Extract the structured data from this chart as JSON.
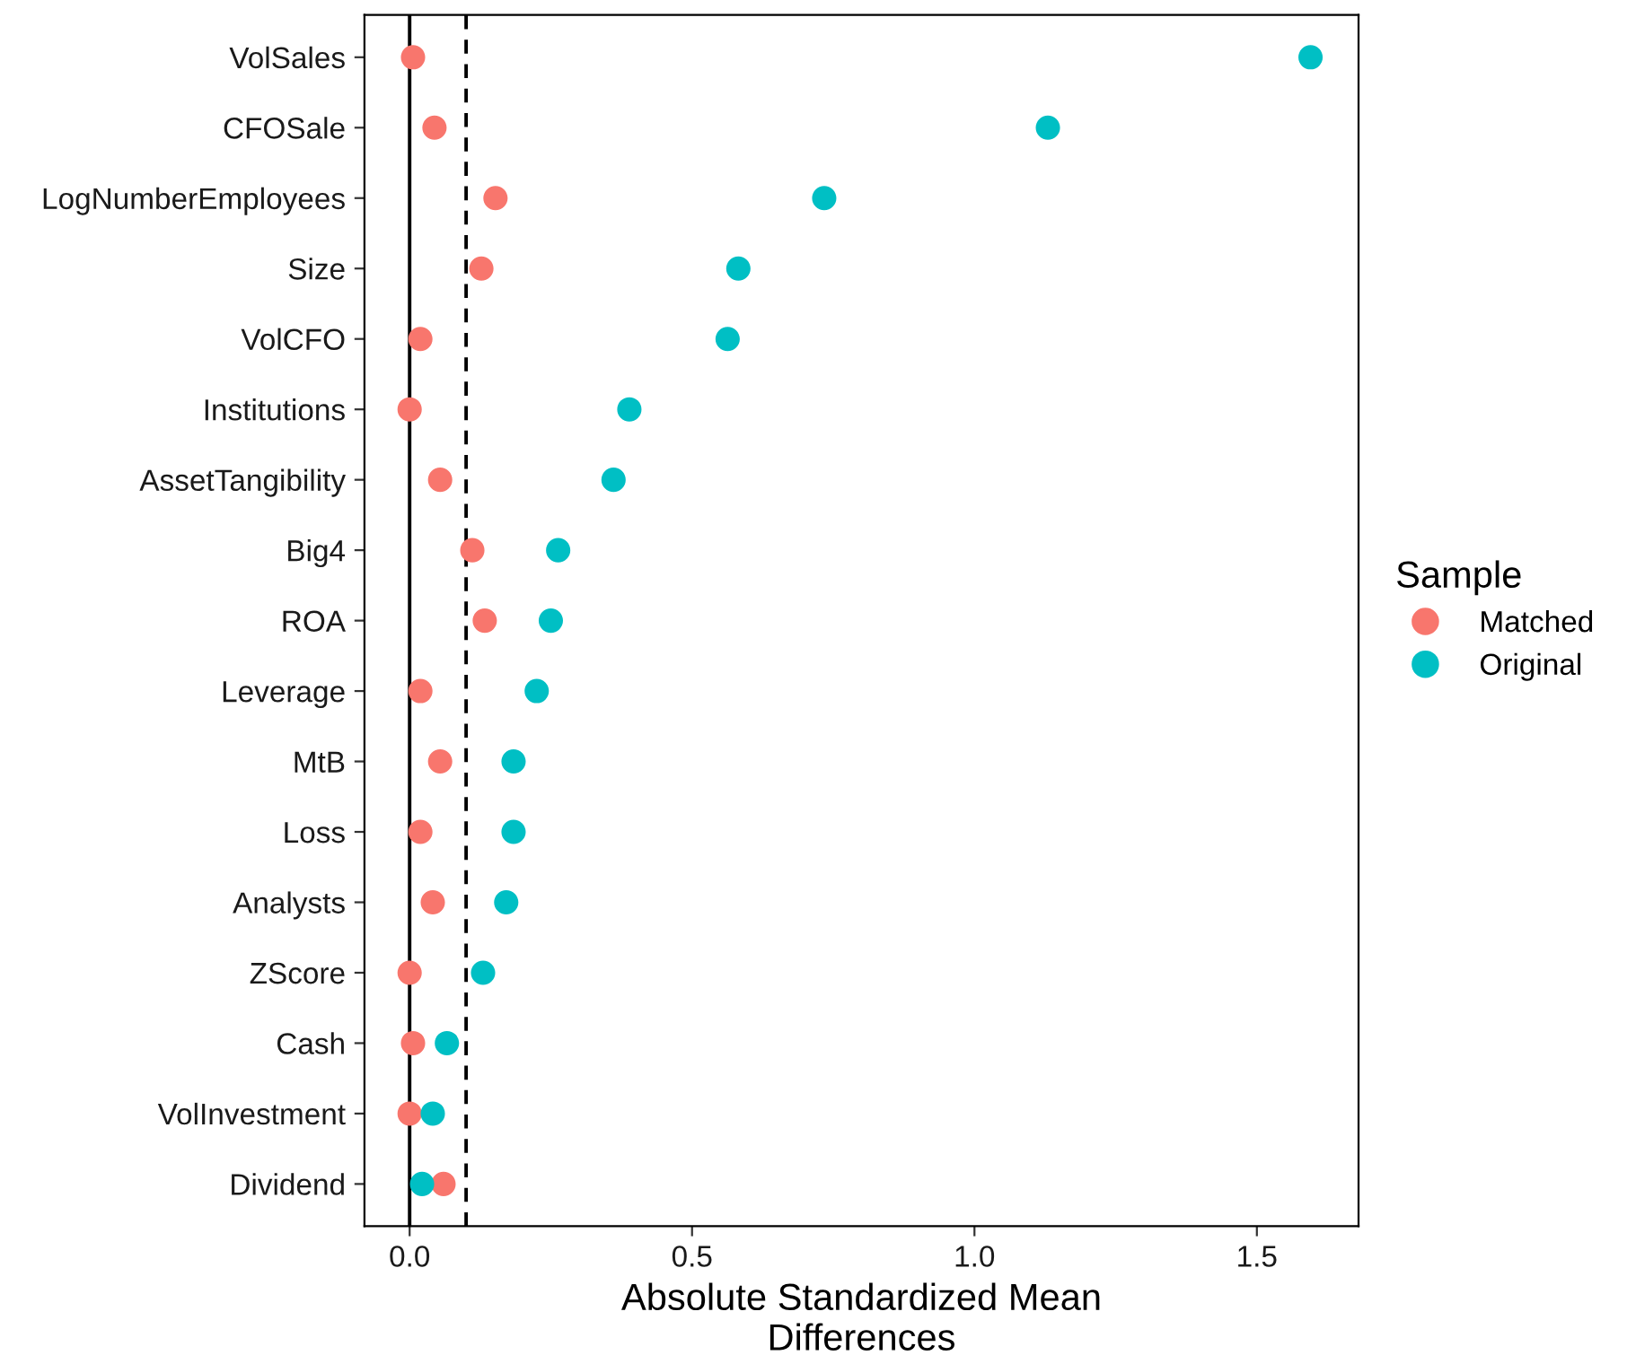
{
  "chart_data": {
    "type": "scatter",
    "orientation": "horizontal",
    "xlabel": "Absolute Standardized Mean\nDifferences",
    "legend_title": "Sample",
    "legend": "right",
    "grid": false,
    "marker": "circle",
    "categories": [
      "VolSales",
      "CFOSale",
      "LogNumberEmployees",
      "Size",
      "VolCFO",
      "Institutions",
      "AssetTangibility",
      "Big4",
      "ROA",
      "Leverage",
      "MtB",
      "Loss",
      "Analysts",
      "ZScore",
      "Cash",
      "VolInvestment",
      "Dividend"
    ],
    "series": [
      {
        "name": "Matched",
        "color": "#f8766d",
        "values": [
          0.006,
          0.044,
          0.152,
          0.127,
          0.019,
          0.0,
          0.054,
          0.111,
          0.133,
          0.019,
          0.054,
          0.019,
          0.041,
          0.0,
          0.006,
          0.0,
          0.06
        ]
      },
      {
        "name": "Original",
        "color": "#00bfc4",
        "values": [
          1.595,
          1.13,
          0.734,
          0.582,
          0.563,
          0.389,
          0.361,
          0.263,
          0.25,
          0.225,
          0.184,
          0.184,
          0.171,
          0.13,
          0.066,
          0.041,
          0.022
        ]
      }
    ],
    "xlim": [
      -0.08,
      1.68
    ],
    "xticks": [
      {
        "value": 0,
        "label": "0.0"
      },
      0.5,
      {
        "value": 1,
        "label": "1.0"
      },
      1.5
    ],
    "ref_lines": [
      {
        "axis": "x",
        "value": 0,
        "label": null,
        "color": "#000000",
        "line_style": "solid"
      },
      {
        "axis": "x",
        "value": 0.1,
        "label": null,
        "color": "#000000",
        "line_style": "dashed"
      }
    ]
  }
}
